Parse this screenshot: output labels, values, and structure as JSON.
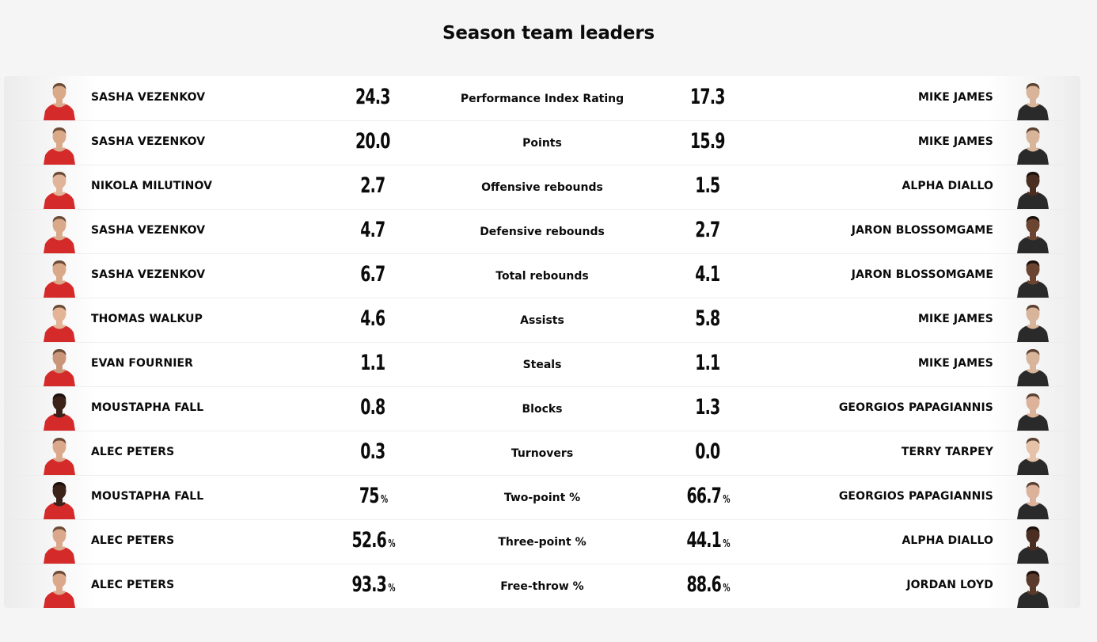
{
  "title": "Season team leaders",
  "colors": {
    "home_jersey": "#d42a2a",
    "away_jersey": "#2a2a2a",
    "background": "#f5f5f5"
  },
  "rows": [
    {
      "stat": "Performance Index Rating",
      "home_player": "SASHA VEZENKOV",
      "home_value": "24.3",
      "home_unit": "",
      "away_value": "17.3",
      "away_unit": "",
      "away_player": "MIKE JAMES",
      "home_skin": "#d9a98a",
      "away_skin": "#d8b49a"
    },
    {
      "stat": "Points",
      "home_player": "SASHA VEZENKOV",
      "home_value": "20.0",
      "home_unit": "",
      "away_value": "15.9",
      "away_unit": "",
      "away_player": "MIKE JAMES",
      "home_skin": "#d9a98a",
      "away_skin": "#d8b49a"
    },
    {
      "stat": "Offensive rebounds",
      "home_player": "NIKOLA MILUTINOV",
      "home_value": "2.7",
      "home_unit": "",
      "away_value": "1.5",
      "away_unit": "",
      "away_player": "ALPHA DIALLO",
      "home_skin": "#e0b499",
      "away_skin": "#4a2e22"
    },
    {
      "stat": "Defensive rebounds",
      "home_player": "SASHA VEZENKOV",
      "home_value": "4.7",
      "home_unit": "",
      "away_value": "2.7",
      "away_unit": "",
      "away_player": "JARON BLOSSOMGAME",
      "home_skin": "#d9a98a",
      "away_skin": "#6b4532"
    },
    {
      "stat": "Total rebounds",
      "home_player": "SASHA VEZENKOV",
      "home_value": "6.7",
      "home_unit": "",
      "away_value": "4.1",
      "away_unit": "",
      "away_player": "JARON BLOSSOMGAME",
      "home_skin": "#d9a98a",
      "away_skin": "#6b4532"
    },
    {
      "stat": "Assists",
      "home_player": "THOMAS WALKUP",
      "home_value": "4.6",
      "home_unit": "",
      "away_value": "5.8",
      "away_unit": "",
      "away_player": "MIKE JAMES",
      "home_skin": "#e3b596",
      "away_skin": "#d8b49a"
    },
    {
      "stat": "Steals",
      "home_player": "EVAN FOURNIER",
      "home_value": "1.1",
      "home_unit": "",
      "away_value": "1.1",
      "away_unit": "",
      "away_player": "MIKE JAMES",
      "home_skin": "#c9967a",
      "away_skin": "#d8b49a"
    },
    {
      "stat": "Blocks",
      "home_player": "MOUSTAPHA FALL",
      "home_value": "0.8",
      "home_unit": "",
      "away_value": "1.3",
      "away_unit": "",
      "away_player": "GEORGIOS PAPAGIANNIS",
      "home_skin": "#3d2219",
      "away_skin": "#dcb29a"
    },
    {
      "stat": "Turnovers",
      "home_player": "ALEC PETERS",
      "home_value": "0.3",
      "home_unit": "",
      "away_value": "0.0",
      "away_unit": "",
      "away_player": "TERRY TARPEY",
      "home_skin": "#dba88c",
      "away_skin": "#e6c2a8"
    },
    {
      "stat": "Two-point %",
      "home_player": "MOUSTAPHA FALL",
      "home_value": "75",
      "home_unit": "%",
      "away_value": "66.7",
      "away_unit": "%",
      "away_player": "GEORGIOS PAPAGIANNIS",
      "home_skin": "#3d2219",
      "away_skin": "#dcb29a"
    },
    {
      "stat": "Three-point %",
      "home_player": "ALEC PETERS",
      "home_value": "52.6",
      "home_unit": "%",
      "away_value": "44.1",
      "away_unit": "%",
      "away_player": "ALPHA DIALLO",
      "home_skin": "#dba88c",
      "away_skin": "#4a2e22"
    },
    {
      "stat": "Free-throw %",
      "home_player": "ALEC PETERS",
      "home_value": "93.3",
      "home_unit": "%",
      "away_value": "88.6",
      "away_unit": "%",
      "away_player": "JORDAN LOYD",
      "home_skin": "#dba88c",
      "away_skin": "#5a3a2a"
    }
  ]
}
